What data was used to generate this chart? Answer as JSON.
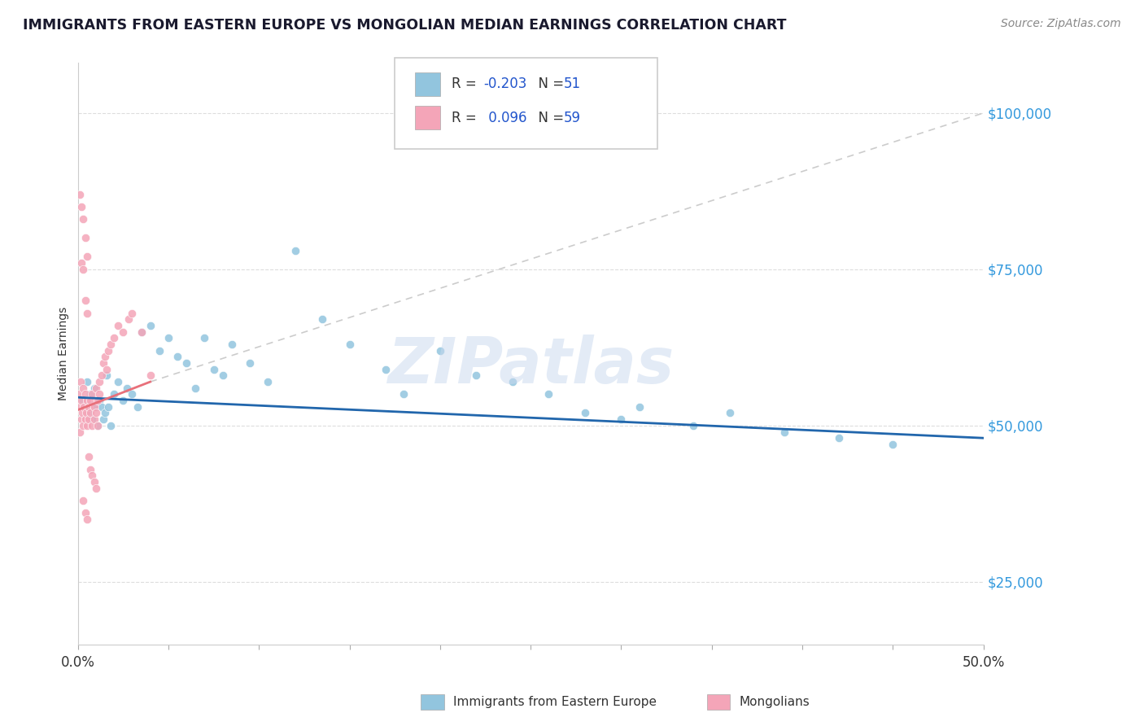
{
  "title": "IMMIGRANTS FROM EASTERN EUROPE VS MONGOLIAN MEDIAN EARNINGS CORRELATION CHART",
  "source_text": "Source: ZipAtlas.com",
  "ylabel": "Median Earnings",
  "xlim": [
    0.0,
    0.5
  ],
  "ylim": [
    15000,
    108000
  ],
  "ytick_positions": [
    25000,
    50000,
    75000,
    100000
  ],
  "ytick_labels": [
    "$25,000",
    "$50,000",
    "$75,000",
    "$100,000"
  ],
  "blue_color": "#92c5de",
  "pink_color": "#f4a5b8",
  "trend_blue_color": "#2166ac",
  "trend_pink_color": "#e8707a",
  "trend_dashed_color": "#cccccc",
  "background_color": "#ffffff",
  "grid_color": "#dddddd",
  "title_color": "#1a1a2e",
  "label_color": "#333333",
  "source_color": "#888888",
  "ytick_color": "#3399dd",
  "watermark_color": "#c8d8ee",
  "blue_x": [
    0.003,
    0.005,
    0.006,
    0.007,
    0.008,
    0.009,
    0.01,
    0.011,
    0.012,
    0.013,
    0.014,
    0.015,
    0.016,
    0.017,
    0.018,
    0.02,
    0.022,
    0.025,
    0.027,
    0.03,
    0.033,
    0.035,
    0.04,
    0.045,
    0.05,
    0.06,
    0.065,
    0.07,
    0.075,
    0.085,
    0.095,
    0.105,
    0.12,
    0.135,
    0.15,
    0.17,
    0.2,
    0.22,
    0.24,
    0.26,
    0.28,
    0.31,
    0.34,
    0.36,
    0.39,
    0.42,
    0.45,
    0.18,
    0.3,
    0.08,
    0.055
  ],
  "blue_y": [
    54000,
    57000,
    52000,
    55000,
    51000,
    56000,
    53000,
    50000,
    54000,
    53000,
    51000,
    52000,
    58000,
    53000,
    50000,
    55000,
    57000,
    54000,
    56000,
    55000,
    53000,
    65000,
    66000,
    62000,
    64000,
    60000,
    56000,
    64000,
    59000,
    63000,
    60000,
    57000,
    78000,
    67000,
    63000,
    59000,
    62000,
    58000,
    57000,
    55000,
    52000,
    53000,
    50000,
    52000,
    49000,
    48000,
    47000,
    55000,
    51000,
    58000,
    61000
  ],
  "pink_x": [
    0.0005,
    0.001,
    0.001,
    0.0015,
    0.002,
    0.002,
    0.0025,
    0.003,
    0.003,
    0.0035,
    0.004,
    0.004,
    0.0045,
    0.005,
    0.005,
    0.006,
    0.006,
    0.007,
    0.007,
    0.008,
    0.008,
    0.009,
    0.009,
    0.01,
    0.01,
    0.011,
    0.011,
    0.012,
    0.012,
    0.013,
    0.014,
    0.015,
    0.016,
    0.017,
    0.018,
    0.02,
    0.022,
    0.025,
    0.028,
    0.03,
    0.035,
    0.04,
    0.001,
    0.002,
    0.003,
    0.004,
    0.005,
    0.006,
    0.007,
    0.008,
    0.009,
    0.01,
    0.003,
    0.004,
    0.005,
    0.002,
    0.003,
    0.004,
    0.005
  ],
  "pink_y": [
    55000,
    53000,
    49000,
    57000,
    51000,
    54000,
    52000,
    56000,
    50000,
    53000,
    51000,
    55000,
    52000,
    54000,
    50000,
    53000,
    51000,
    54000,
    52000,
    55000,
    50000,
    53000,
    51000,
    56000,
    52000,
    54000,
    50000,
    55000,
    57000,
    58000,
    60000,
    61000,
    59000,
    62000,
    63000,
    64000,
    66000,
    65000,
    67000,
    68000,
    65000,
    58000,
    87000,
    76000,
    75000,
    70000,
    68000,
    45000,
    43000,
    42000,
    41000,
    40000,
    38000,
    36000,
    35000,
    85000,
    83000,
    80000,
    77000
  ]
}
